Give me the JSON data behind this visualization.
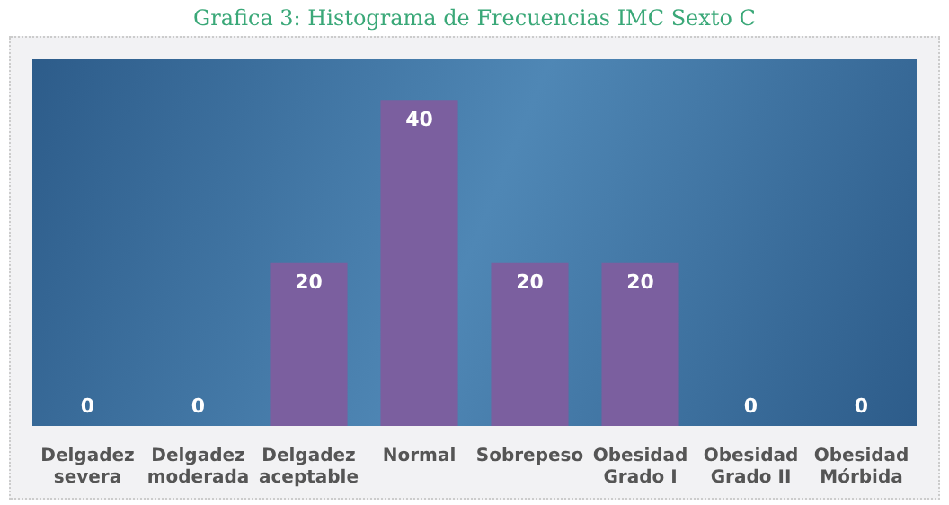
{
  "chart_data": {
    "type": "bar",
    "title": "Grafica 3: Histograma de Frecuencias IMC Sexto C",
    "categories": [
      "Delgadez severa",
      "Delgadez moderada",
      "Delgadez aceptable",
      "Normal",
      "Sobrepeso",
      "Obesidad Grado I",
      "Obesidad Grado II",
      "Obesidad Mórbida"
    ],
    "values": [
      0,
      0,
      20,
      40,
      20,
      20,
      0,
      0
    ],
    "color": "#7b5f9f",
    "data_labels": true
  }
}
